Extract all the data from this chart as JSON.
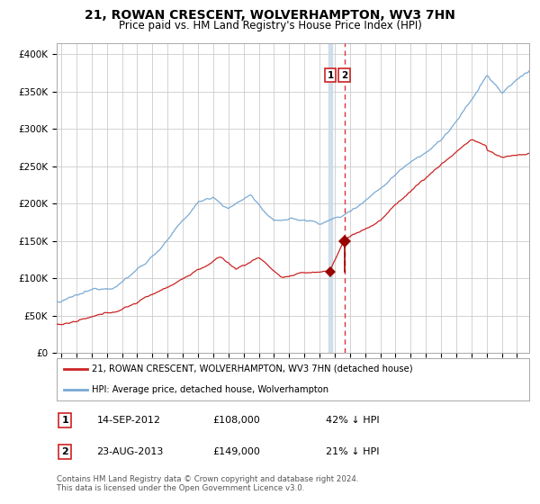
{
  "title": "21, ROWAN CRESCENT, WOLVERHAMPTON, WV3 7HN",
  "subtitle": "Price paid vs. HM Land Registry's House Price Index (HPI)",
  "title_fontsize": 10,
  "subtitle_fontsize": 8.5,
  "ylabel_ticks": [
    "£0",
    "£50K",
    "£100K",
    "£150K",
    "£200K",
    "£250K",
    "£300K",
    "£350K",
    "£400K"
  ],
  "ytick_values": [
    0,
    50000,
    100000,
    150000,
    200000,
    250000,
    300000,
    350000,
    400000
  ],
  "ylim": [
    0,
    415000
  ],
  "xlim_start": 1994.7,
  "xlim_end": 2025.8,
  "hpi_color": "#7aaad4",
  "price_color": "#cc2222",
  "marker_color": "#990000",
  "vline1_color": "#c8d8e8",
  "vline2_color": "#dd3333",
  "transaction1": {
    "date_num": 2012.71,
    "price": 108000,
    "label": "1",
    "date_str": "14-SEP-2012",
    "pct": "42% ↓ HPI"
  },
  "transaction2": {
    "date_num": 2013.64,
    "price": 149000,
    "label": "2",
    "date_str": "23-AUG-2013",
    "pct": "21% ↓ HPI"
  },
  "legend_line1": "21, ROWAN CRESCENT, WOLVERHAMPTON, WV3 7HN (detached house)",
  "legend_line2": "HPI: Average price, detached house, Wolverhampton",
  "footnote": "Contains HM Land Registry data © Crown copyright and database right 2024.\nThis data is licensed under the Open Government Licence v3.0.",
  "background_color": "#ffffff",
  "grid_color": "#cccccc"
}
